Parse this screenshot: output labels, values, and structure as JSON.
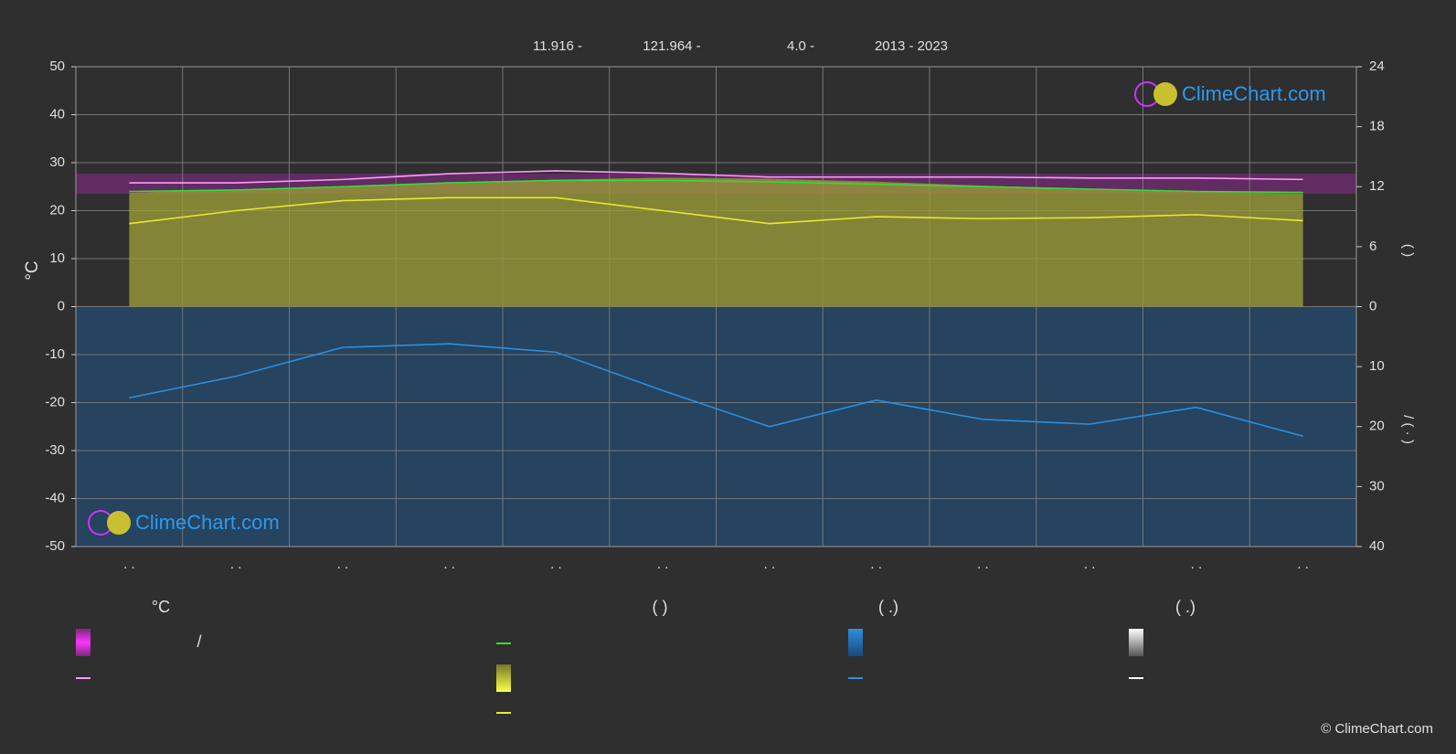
{
  "chart_data": {
    "type": "climate",
    "header": [
      "11.916 -",
      "121.964 -",
      "4.0 -",
      "2013 - 2023"
    ],
    "ylabel": "°C",
    "y2label": "(    )",
    "y3label": "/  ( · )",
    "categories": [
      ". .",
      ". .",
      ". .",
      ". .",
      ". .",
      ". .",
      ". .",
      ". .",
      ". .",
      ". .",
      ". .",
      ". ."
    ],
    "ylim": [
      -50,
      50
    ],
    "yticks": [
      -50,
      -40,
      -30,
      -20,
      -10,
      0,
      10,
      20,
      30,
      40,
      50
    ],
    "y2lim": [
      0,
      24
    ],
    "y2ticks": [
      0,
      6,
      12,
      18,
      24
    ],
    "y3lim": [
      0,
      40
    ],
    "y3ticks": [
      10,
      20,
      30,
      40
    ],
    "grid": true,
    "series": [
      {
        "color": "#ff99ff",
        "kind": "line",
        "axis": "y",
        "values": [
          25.8,
          25.8,
          26.5,
          27.7,
          28.3,
          27.8,
          27.0,
          27.0,
          27.0,
          26.8,
          26.8,
          26.5
        ]
      },
      {
        "color": "#33dd33",
        "kind": "line",
        "axis": "y",
        "values": [
          24.0,
          24.3,
          25.0,
          25.8,
          26.3,
          26.3,
          26.0,
          25.5,
          25.0,
          24.5,
          24.0,
          23.8
        ]
      },
      {
        "color": "#9a9a3a",
        "kind": "area",
        "axis": "y2",
        "values": [
          11.4,
          11.7,
          12.0,
          12.4,
          12.7,
          12.9,
          12.8,
          12.5,
          12.1,
          11.8,
          11.5,
          11.3
        ]
      },
      {
        "color": "#e8e830",
        "kind": "line",
        "axis": "y2",
        "values": [
          8.3,
          9.6,
          10.6,
          10.9,
          10.9,
          9.6,
          8.3,
          9.0,
          8.8,
          8.9,
          9.2,
          8.6
        ]
      },
      {
        "color": "#2b8fe0",
        "kind": "line",
        "axis": "y3",
        "values": [
          15.2,
          11.6,
          6.8,
          6.2,
          7.6,
          14.0,
          20.0,
          15.6,
          18.8,
          19.6,
          16.8,
          21.6
        ]
      }
    ],
    "logo": "ClimeChart.com",
    "legend_headings": [
      "°C",
      "(          )",
      "(   .)",
      "(   .)"
    ],
    "legend_text": "/",
    "copyright": "© ClimeChart.com"
  }
}
